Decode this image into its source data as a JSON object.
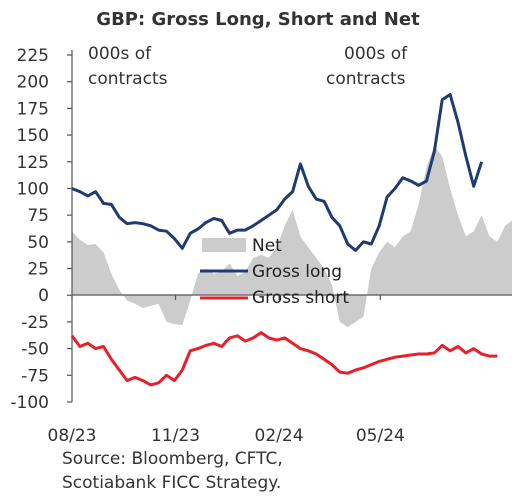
{
  "chart_data": {
    "type": "line",
    "title": "GBP: Gross Long, Short and Net",
    "unit_left": "000s of contracts",
    "unit_right": "000s of contracts",
    "yticks": [
      "225",
      "200",
      "175",
      "150",
      "125",
      "100",
      "75",
      "50",
      "25",
      "0",
      "-25",
      "-50",
      "-75",
      "-100"
    ],
    "ylim": [
      -100,
      225
    ],
    "xlim": [
      "2023-08-01",
      "2024-08-26"
    ],
    "xticks": [
      {
        "date": "2023-08-01",
        "label": "08/23"
      },
      {
        "date": "2023-11-01",
        "label": "11/23"
      },
      {
        "date": "2024-02-01",
        "label": "02/24"
      },
      {
        "date": "2024-05-01",
        "label": "05/24"
      }
    ],
    "legend": [
      "Net",
      "Gross long",
      "Gross short"
    ],
    "legend_position": "center",
    "grid": false,
    "series": [
      {
        "name": "Net",
        "kind": "area",
        "color": "#cccccc",
        "points": [
          [
            "2023-08-01",
            60
          ],
          [
            "2023-08-08",
            52
          ],
          [
            "2023-08-15",
            47
          ],
          [
            "2023-08-22",
            48
          ],
          [
            "2023-08-29",
            40
          ],
          [
            "2023-09-05",
            20
          ],
          [
            "2023-09-12",
            5
          ],
          [
            "2023-09-19",
            -5
          ],
          [
            "2023-09-26",
            -8
          ],
          [
            "2023-10-03",
            -12
          ],
          [
            "2023-10-10",
            -10
          ],
          [
            "2023-10-17",
            -8
          ],
          [
            "2023-10-24",
            -25
          ],
          [
            "2023-10-31",
            -27
          ],
          [
            "2023-11-07",
            -28
          ],
          [
            "2023-11-14",
            -5
          ],
          [
            "2023-11-21",
            20
          ],
          [
            "2023-11-28",
            25
          ],
          [
            "2023-12-05",
            20
          ],
          [
            "2023-12-12",
            22
          ],
          [
            "2023-12-19",
            30
          ],
          [
            "2023-12-26",
            18
          ],
          [
            "2024-01-02",
            22
          ],
          [
            "2024-01-09",
            35
          ],
          [
            "2024-01-16",
            38
          ],
          [
            "2024-01-23",
            35
          ],
          [
            "2024-01-30",
            45
          ],
          [
            "2024-02-06",
            65
          ],
          [
            "2024-02-13",
            80
          ],
          [
            "2024-02-20",
            55
          ],
          [
            "2024-02-27",
            45
          ],
          [
            "2024-03-05",
            35
          ],
          [
            "2024-03-12",
            25
          ],
          [
            "2024-03-19",
            10
          ],
          [
            "2024-03-26",
            -25
          ],
          [
            "2024-04-02",
            -30
          ],
          [
            "2024-04-09",
            -25
          ],
          [
            "2024-04-16",
            -20
          ],
          [
            "2024-04-23",
            25
          ],
          [
            "2024-04-30",
            40
          ],
          [
            "2024-05-07",
            50
          ],
          [
            "2024-05-14",
            45
          ],
          [
            "2024-05-21",
            55
          ],
          [
            "2024-05-28",
            60
          ],
          [
            "2024-06-04",
            85
          ],
          [
            "2024-06-11",
            120
          ],
          [
            "2024-06-18",
            140
          ],
          [
            "2024-06-25",
            130
          ],
          [
            "2024-07-02",
            100
          ],
          [
            "2024-07-09",
            75
          ],
          [
            "2024-07-16",
            55
          ],
          [
            "2024-07-23",
            60
          ],
          [
            "2024-07-30",
            75
          ],
          [
            "2024-08-06",
            55
          ],
          [
            "2024-08-13",
            50
          ],
          [
            "2024-08-20",
            65
          ],
          [
            "2024-08-26",
            70
          ]
        ]
      },
      {
        "name": "Gross long",
        "kind": "line",
        "color": "#1f3b73",
        "points": [
          [
            "2023-08-01",
            100
          ],
          [
            "2023-08-08",
            97
          ],
          [
            "2023-08-15",
            93
          ],
          [
            "2023-08-22",
            97
          ],
          [
            "2023-08-29",
            86
          ],
          [
            "2023-09-05",
            85
          ],
          [
            "2023-09-12",
            73
          ],
          [
            "2023-09-19",
            67
          ],
          [
            "2023-09-26",
            68
          ],
          [
            "2023-10-03",
            67
          ],
          [
            "2023-10-10",
            65
          ],
          [
            "2023-10-17",
            61
          ],
          [
            "2023-10-24",
            60
          ],
          [
            "2023-10-31",
            53
          ],
          [
            "2023-11-07",
            44
          ],
          [
            "2023-11-14",
            58
          ],
          [
            "2023-11-21",
            62
          ],
          [
            "2023-11-28",
            68
          ],
          [
            "2023-12-05",
            72
          ],
          [
            "2023-12-12",
            70
          ],
          [
            "2023-12-19",
            58
          ],
          [
            "2023-12-26",
            61
          ],
          [
            "2024-01-02",
            61
          ],
          [
            "2024-01-09",
            65
          ],
          [
            "2024-01-16",
            70
          ],
          [
            "2024-01-23",
            75
          ],
          [
            "2024-01-30",
            80
          ],
          [
            "2024-02-06",
            90
          ],
          [
            "2024-02-13",
            97
          ],
          [
            "2024-02-20",
            123
          ],
          [
            "2024-02-27",
            102
          ],
          [
            "2024-03-05",
            90
          ],
          [
            "2024-03-12",
            88
          ],
          [
            "2024-03-19",
            73
          ],
          [
            "2024-03-26",
            65
          ],
          [
            "2024-04-02",
            48
          ],
          [
            "2024-04-09",
            42
          ],
          [
            "2024-04-16",
            50
          ],
          [
            "2024-04-23",
            48
          ],
          [
            "2024-04-30",
            65
          ],
          [
            "2024-05-07",
            92
          ],
          [
            "2024-05-14",
            100
          ],
          [
            "2024-05-21",
            110
          ],
          [
            "2024-05-28",
            107
          ],
          [
            "2024-06-04",
            103
          ],
          [
            "2024-06-11",
            107
          ],
          [
            "2024-06-18",
            135
          ],
          [
            "2024-06-25",
            183
          ],
          [
            "2024-07-02",
            188
          ],
          [
            "2024-07-09",
            162
          ],
          [
            "2024-07-16",
            130
          ],
          [
            "2024-07-23",
            102
          ],
          [
            "2024-07-30",
            125
          ]
        ]
      },
      {
        "name": "Gross short",
        "kind": "line",
        "color": "#e8202a",
        "points": [
          [
            "2023-08-01",
            -38
          ],
          [
            "2023-08-08",
            -48
          ],
          [
            "2023-08-15",
            -45
          ],
          [
            "2023-08-22",
            -50
          ],
          [
            "2023-08-29",
            -48
          ],
          [
            "2023-09-05",
            -60
          ],
          [
            "2023-09-12",
            -70
          ],
          [
            "2023-09-19",
            -80
          ],
          [
            "2023-09-26",
            -77
          ],
          [
            "2023-10-03",
            -80
          ],
          [
            "2023-10-10",
            -84
          ],
          [
            "2023-10-17",
            -82
          ],
          [
            "2023-10-24",
            -75
          ],
          [
            "2023-10-31",
            -80
          ],
          [
            "2023-11-07",
            -70
          ],
          [
            "2023-11-14",
            -52
          ],
          [
            "2023-11-21",
            -50
          ],
          [
            "2023-11-28",
            -47
          ],
          [
            "2023-12-05",
            -45
          ],
          [
            "2023-12-12",
            -48
          ],
          [
            "2023-12-19",
            -40
          ],
          [
            "2023-12-26",
            -38
          ],
          [
            "2024-01-02",
            -43
          ],
          [
            "2024-01-09",
            -40
          ],
          [
            "2024-01-16",
            -35
          ],
          [
            "2024-01-23",
            -40
          ],
          [
            "2024-01-30",
            -42
          ],
          [
            "2024-02-06",
            -40
          ],
          [
            "2024-02-13",
            -45
          ],
          [
            "2024-02-20",
            -50
          ],
          [
            "2024-02-27",
            -52
          ],
          [
            "2024-03-05",
            -55
          ],
          [
            "2024-03-12",
            -60
          ],
          [
            "2024-03-19",
            -65
          ],
          [
            "2024-03-26",
            -72
          ],
          [
            "2024-04-02",
            -73
          ],
          [
            "2024-04-09",
            -70
          ],
          [
            "2024-04-16",
            -68
          ],
          [
            "2024-04-23",
            -65
          ],
          [
            "2024-04-30",
            -62
          ],
          [
            "2024-05-07",
            -60
          ],
          [
            "2024-05-14",
            -58
          ],
          [
            "2024-05-21",
            -57
          ],
          [
            "2024-05-28",
            -56
          ],
          [
            "2024-06-04",
            -55
          ],
          [
            "2024-06-11",
            -55
          ],
          [
            "2024-06-18",
            -54
          ],
          [
            "2024-06-25",
            -47
          ],
          [
            "2024-07-02",
            -52
          ],
          [
            "2024-07-09",
            -48
          ],
          [
            "2024-07-16",
            -54
          ],
          [
            "2024-07-23",
            -50
          ],
          [
            "2024-07-30",
            -55
          ],
          [
            "2024-08-06",
            -57
          ],
          [
            "2024-08-13",
            -57
          ]
        ]
      }
    ]
  },
  "source_lines": [
    "Source: Bloomberg, CFTC,",
    "Scotiabank FICC Strategy."
  ]
}
